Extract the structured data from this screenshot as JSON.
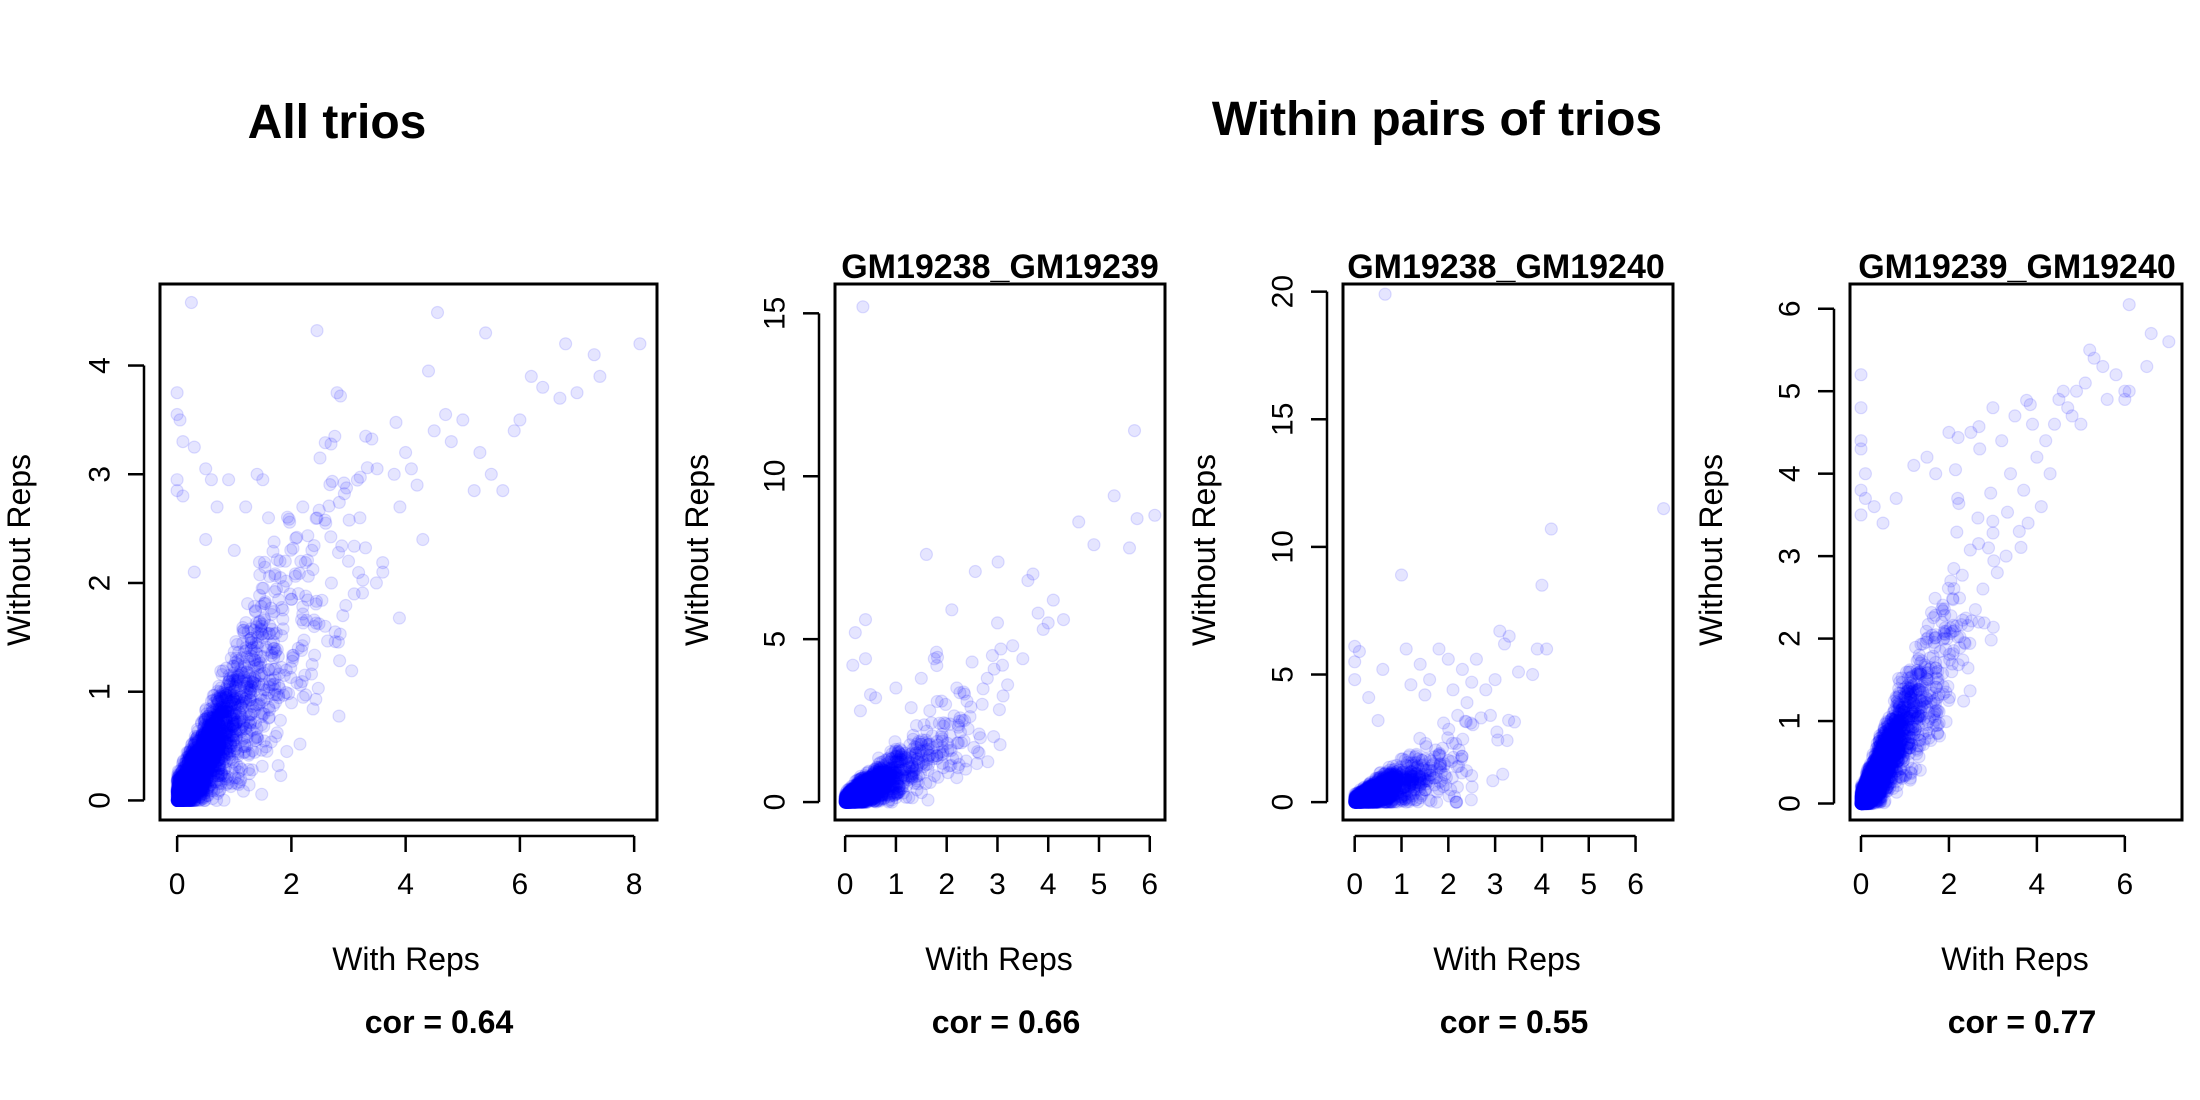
{
  "figure": {
    "left_title": "All trios",
    "right_title": "Within pairs of trios"
  },
  "chart_data": [
    {
      "type": "scatter",
      "title": "",
      "xlabel": "With Reps",
      "ylabel": "Without Reps",
      "footer": "cor = 0.64",
      "xlim": [
        -0.3,
        8.4
      ],
      "ylim": [
        -0.18,
        4.75
      ],
      "xticks": [
        0,
        2,
        4,
        6,
        8
      ],
      "yticks": [
        0,
        1,
        2,
        3,
        4
      ],
      "color": "#0000ff",
      "seed": 11,
      "cloud": {
        "n": 2600,
        "xscale": 0.85,
        "slope": 0.8,
        "spread": 0.42
      },
      "points": [
        [
          0.25,
          4.58
        ],
        [
          0.0,
          3.75
        ],
        [
          0.0,
          3.55
        ],
        [
          0.05,
          3.5
        ],
        [
          0.1,
          3.3
        ],
        [
          0.0,
          2.95
        ],
        [
          0.0,
          2.85
        ],
        [
          0.1,
          2.8
        ],
        [
          0.3,
          3.25
        ],
        [
          0.5,
          3.05
        ],
        [
          0.6,
          2.95
        ],
        [
          0.9,
          2.95
        ],
        [
          1.4,
          3.0
        ],
        [
          1.5,
          2.95
        ],
        [
          1.2,
          2.7
        ],
        [
          0.7,
          2.7
        ],
        [
          2.5,
          3.15
        ],
        [
          2.8,
          3.75
        ],
        [
          3.3,
          3.35
        ],
        [
          3.5,
          3.05
        ],
        [
          4.0,
          3.2
        ],
        [
          4.1,
          3.05
        ],
        [
          4.4,
          3.95
        ],
        [
          4.2,
          2.9
        ],
        [
          4.5,
          3.4
        ],
        [
          4.7,
          3.55
        ],
        [
          4.8,
          3.3
        ],
        [
          5.0,
          3.5
        ],
        [
          5.2,
          2.85
        ],
        [
          5.3,
          3.2
        ],
        [
          5.4,
          4.3
        ],
        [
          5.5,
          3.0
        ],
        [
          5.7,
          2.85
        ],
        [
          6.0,
          3.5
        ],
        [
          6.2,
          3.9
        ],
        [
          6.4,
          3.8
        ],
        [
          6.7,
          3.7
        ],
        [
          6.8,
          4.2
        ],
        [
          7.0,
          3.75
        ],
        [
          7.3,
          4.1
        ],
        [
          7.4,
          3.9
        ],
        [
          8.1,
          4.2
        ],
        [
          5.9,
          3.4
        ],
        [
          3.8,
          3.0
        ],
        [
          3.9,
          2.7
        ],
        [
          4.3,
          2.4
        ],
        [
          3.6,
          2.1
        ],
        [
          3.0,
          2.2
        ],
        [
          3.2,
          2.6
        ],
        [
          2.2,
          2.7
        ],
        [
          2.6,
          2.55
        ],
        [
          1.8,
          2.2
        ],
        [
          2.0,
          1.85
        ],
        [
          2.4,
          1.6
        ],
        [
          2.9,
          1.7
        ],
        [
          3.1,
          1.9
        ],
        [
          2.7,
          2.0
        ],
        [
          1.6,
          2.6
        ],
        [
          1.0,
          2.3
        ],
        [
          0.5,
          2.4
        ],
        [
          0.3,
          2.1
        ]
      ]
    },
    {
      "type": "scatter",
      "title": "GM19238_GM19239",
      "xlabel": "With Reps",
      "ylabel": "Without Reps",
      "footer": "cor = 0.66",
      "xlim": [
        -0.2,
        6.3
      ],
      "ylim": [
        -0.55,
        15.9
      ],
      "xticks": [
        0,
        1,
        2,
        3,
        4,
        5,
        6
      ],
      "yticks": [
        0,
        5,
        10,
        15
      ],
      "color": "#0000ff",
      "seed": 23,
      "cloud": {
        "n": 2000,
        "xscale": 0.7,
        "slope": 0.9,
        "spread": 0.55
      },
      "points": [
        [
          0.35,
          15.2
        ],
        [
          0.4,
          5.6
        ],
        [
          0.2,
          5.2
        ],
        [
          0.15,
          4.2
        ],
        [
          0.4,
          4.4
        ],
        [
          0.5,
          3.3
        ],
        [
          0.3,
          2.8
        ],
        [
          0.6,
          3.2
        ],
        [
          1.0,
          3.5
        ],
        [
          1.5,
          3.8
        ],
        [
          1.6,
          7.6
        ],
        [
          1.8,
          4.6
        ],
        [
          2.1,
          5.9
        ],
        [
          2.2,
          3.5
        ],
        [
          2.5,
          4.3
        ],
        [
          2.7,
          3.0
        ],
        [
          2.8,
          3.8
        ],
        [
          2.9,
          4.5
        ],
        [
          3.0,
          5.5
        ],
        [
          3.1,
          4.2
        ],
        [
          3.2,
          3.6
        ],
        [
          3.3,
          4.8
        ],
        [
          3.5,
          4.4
        ],
        [
          3.6,
          6.8
        ],
        [
          3.7,
          7.0
        ],
        [
          3.8,
          5.8
        ],
        [
          3.9,
          5.3
        ],
        [
          4.0,
          5.5
        ],
        [
          4.1,
          6.2
        ],
        [
          4.3,
          5.6
        ],
        [
          4.6,
          8.6
        ],
        [
          4.9,
          7.9
        ],
        [
          5.3,
          9.4
        ],
        [
          5.6,
          7.8
        ],
        [
          5.7,
          11.4
        ],
        [
          5.75,
          8.7
        ],
        [
          6.1,
          8.8
        ],
        [
          2.4,
          3.1
        ],
        [
          1.9,
          3.1
        ],
        [
          1.3,
          2.9
        ]
      ]
    },
    {
      "type": "scatter",
      "title": "GM19238_GM19240",
      "xlabel": "With Reps",
      "ylabel": "Without Reps",
      "footer": "cor = 0.55",
      "xlim": [
        -0.25,
        6.8
      ],
      "ylim": [
        -0.7,
        20.3
      ],
      "xticks": [
        0,
        1,
        2,
        3,
        4,
        5,
        6
      ],
      "yticks": [
        0,
        5,
        10,
        15,
        20
      ],
      "color": "#0000ff",
      "seed": 37,
      "cloud": {
        "n": 1900,
        "xscale": 0.72,
        "slope": 0.75,
        "spread": 0.6
      },
      "points": [
        [
          0.65,
          19.9
        ],
        [
          0.0,
          6.1
        ],
        [
          0.0,
          5.5
        ],
        [
          0.1,
          5.9
        ],
        [
          0.0,
          4.8
        ],
        [
          0.3,
          4.1
        ],
        [
          0.6,
          5.2
        ],
        [
          0.5,
          3.2
        ],
        [
          1.0,
          8.9
        ],
        [
          1.1,
          6.0
        ],
        [
          1.2,
          4.6
        ],
        [
          1.4,
          5.4
        ],
        [
          1.5,
          4.2
        ],
        [
          1.6,
          4.8
        ],
        [
          1.8,
          6.0
        ],
        [
          2.0,
          5.6
        ],
        [
          2.1,
          4.4
        ],
        [
          2.2,
          3.4
        ],
        [
          2.3,
          5.2
        ],
        [
          2.4,
          3.9
        ],
        [
          2.5,
          4.7
        ],
        [
          2.6,
          5.6
        ],
        [
          2.8,
          4.4
        ],
        [
          2.9,
          3.4
        ],
        [
          3.0,
          4.8
        ],
        [
          3.1,
          6.7
        ],
        [
          3.2,
          6.2
        ],
        [
          3.3,
          6.5
        ],
        [
          3.5,
          5.1
        ],
        [
          3.8,
          5.0
        ],
        [
          3.9,
          6.0
        ],
        [
          4.0,
          8.5
        ],
        [
          4.1,
          6.0
        ],
        [
          4.2,
          10.7
        ],
        [
          6.6,
          11.5
        ],
        [
          2.7,
          3.3
        ],
        [
          1.9,
          3.1
        ]
      ]
    },
    {
      "type": "scatter",
      "title": "GM19239_GM19240",
      "xlabel": "With Reps",
      "ylabel": "Without Reps",
      "footer": "cor = 0.77",
      "xlim": [
        -0.25,
        7.3
      ],
      "ylim": [
        -0.2,
        6.3
      ],
      "xticks": [
        0,
        2,
        4,
        6
      ],
      "yticks": [
        0,
        1,
        2,
        3,
        4,
        5,
        6
      ],
      "color": "#0000ff",
      "seed": 53,
      "cloud": {
        "n": 2800,
        "xscale": 0.75,
        "slope": 0.95,
        "spread": 0.4
      },
      "points": [
        [
          0.0,
          5.2
        ],
        [
          0.0,
          4.8
        ],
        [
          0.0,
          4.4
        ],
        [
          0.0,
          4.3
        ],
        [
          0.1,
          4.0
        ],
        [
          0.0,
          3.8
        ],
        [
          0.1,
          3.7
        ],
        [
          0.0,
          3.5
        ],
        [
          0.3,
          3.6
        ],
        [
          0.5,
          3.4
        ],
        [
          0.8,
          3.7
        ],
        [
          1.2,
          4.1
        ],
        [
          1.5,
          4.2
        ],
        [
          1.7,
          4.0
        ],
        [
          2.0,
          4.5
        ],
        [
          2.2,
          3.7
        ],
        [
          2.5,
          4.5
        ],
        [
          2.7,
          4.3
        ],
        [
          3.0,
          4.8
        ],
        [
          3.2,
          4.4
        ],
        [
          3.4,
          4.0
        ],
        [
          3.5,
          4.7
        ],
        [
          3.7,
          3.8
        ],
        [
          3.9,
          4.6
        ],
        [
          4.0,
          4.2
        ],
        [
          4.2,
          4.4
        ],
        [
          4.3,
          4.0
        ],
        [
          4.4,
          4.6
        ],
        [
          4.5,
          4.9
        ],
        [
          4.6,
          5.0
        ],
        [
          4.7,
          4.8
        ],
        [
          4.8,
          4.7
        ],
        [
          4.9,
          5.0
        ],
        [
          5.0,
          4.6
        ],
        [
          5.1,
          5.1
        ],
        [
          5.2,
          5.5
        ],
        [
          5.3,
          5.4
        ],
        [
          5.5,
          5.3
        ],
        [
          5.6,
          4.9
        ],
        [
          5.8,
          5.2
        ],
        [
          6.0,
          5.0
        ],
        [
          6.1,
          5.0
        ],
        [
          6.1,
          6.05
        ],
        [
          6.0,
          4.9
        ],
        [
          6.5,
          5.3
        ],
        [
          6.6,
          5.7
        ],
        [
          7.0,
          5.6
        ],
        [
          3.6,
          3.3
        ],
        [
          3.3,
          3.0
        ],
        [
          3.1,
          2.8
        ],
        [
          2.9,
          3.1
        ],
        [
          4.1,
          3.6
        ],
        [
          3.8,
          3.4
        ]
      ]
    }
  ]
}
